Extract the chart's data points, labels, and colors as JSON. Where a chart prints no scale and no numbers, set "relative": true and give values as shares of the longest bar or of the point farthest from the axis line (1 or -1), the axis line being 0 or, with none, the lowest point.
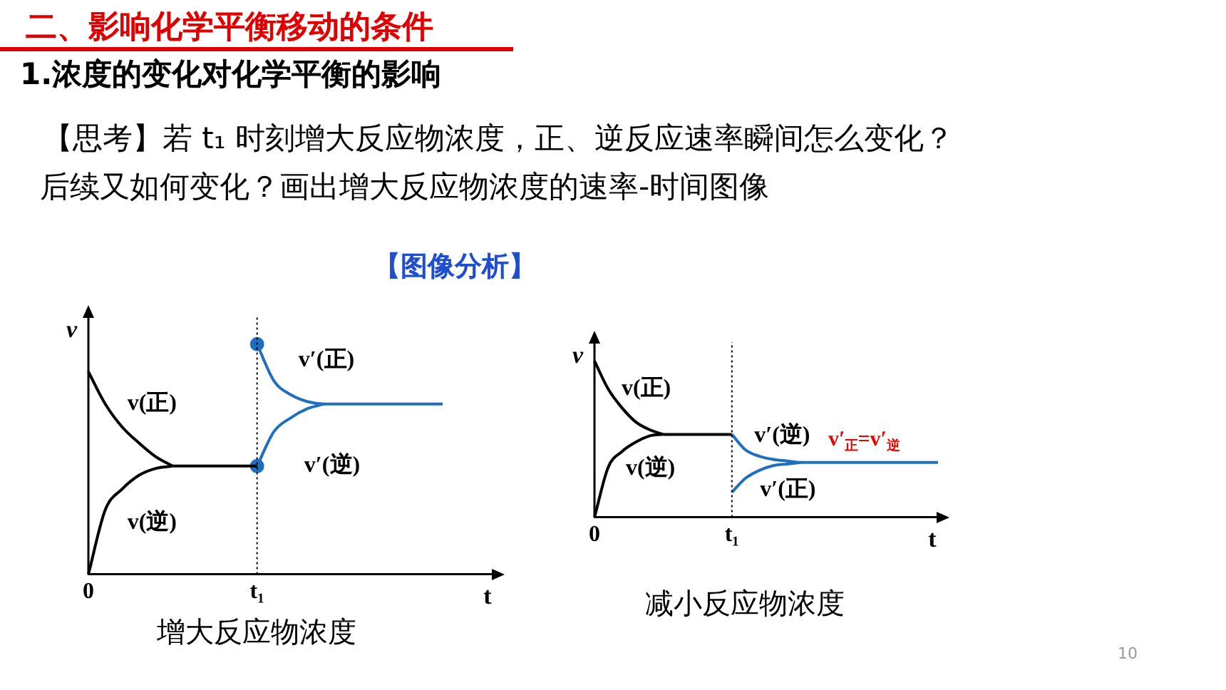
{
  "chart_data": [
    {
      "type": "other",
      "title": "二、影响化学平衡移动的条件",
      "subtitle": "1.浓度的变化对化学平衡的影响",
      "annotations": [
        "【思考】若 t₁ 时刻增大反应物浓度，正、逆反应速率瞬间怎么变化？",
        "后续又如何变化？画出增大反应物浓度的速率-时间图像",
        "【图像分析】",
        "10"
      ]
    },
    {
      "type": "line",
      "relative": true,
      "marker": "none",
      "xlabel": "t",
      "ylabel": "v",
      "categories": [
        "0",
        null,
        null,
        null,
        null,
        null,
        null,
        null,
        null,
        null,
        "t₁",
        null,
        null,
        null,
        null,
        null,
        null,
        null,
        null,
        null,
        null,
        null,
        null,
        null,
        null
      ],
      "series": [
        {
          "name": "v(正)",
          "color": "#000000",
          "values": [
            0.88,
            0.74,
            0.64,
            0.57,
            0.51,
            0.47,
            null,
            null,
            null,
            null,
            null,
            null,
            null,
            null,
            null,
            null,
            null,
            null,
            null,
            null,
            null,
            null,
            null,
            null,
            null
          ]
        },
        {
          "name": "v(逆)",
          "color": "#000000",
          "values": [
            0,
            0.28,
            0.37,
            0.43,
            0.46,
            0.47,
            null,
            null,
            null,
            null,
            null,
            null,
            null,
            null,
            null,
            null,
            null,
            null,
            null,
            null,
            null,
            null,
            null,
            null,
            null
          ]
        },
        {
          "color": "#000000",
          "values": [
            null,
            null,
            null,
            null,
            null,
            0.47,
            0.47,
            0.47,
            0.47,
            0.47,
            0.47,
            null,
            null,
            null,
            null,
            null,
            null,
            null,
            null,
            null,
            null,
            null,
            null,
            null,
            null
          ]
        },
        {
          "name": "v′(正)",
          "color": "#1f6fc0",
          "values": [
            null,
            null,
            null,
            null,
            null,
            null,
            null,
            null,
            null,
            null,
            1,
            0.84,
            0.78,
            0.75,
            0.74,
            0.74,
            0.74,
            0.74,
            0.74,
            0.74,
            0.74,
            0.74,
            null,
            null,
            null
          ]
        },
        {
          "name": "v′(逆)",
          "color": "#1f6fc0",
          "values": [
            null,
            null,
            null,
            null,
            null,
            null,
            null,
            null,
            null,
            null,
            0.47,
            0.62,
            0.68,
            0.72,
            0.74,
            null,
            null,
            null,
            null,
            null,
            null,
            null,
            null,
            null,
            null
          ]
        },
        {
          "type": "scatter",
          "marker": "circle",
          "color": "#1f6fc0",
          "x": [
            "t₁",
            "t₁"
          ],
          "values": [
            1,
            0.47
          ]
        }
      ],
      "ref_lines": [
        {
          "axis": "x",
          "value": "t₁",
          "color": "#000000",
          "line_style": "dotted"
        }
      ],
      "annotations": [
        "增大反应物浓度"
      ]
    },
    {
      "type": "line",
      "relative": true,
      "marker": "none",
      "xlabel": "t",
      "ylabel": "v",
      "categories": [
        "0",
        null,
        null,
        null,
        null,
        null,
        null,
        null,
        null,
        null,
        "t₁",
        null,
        null,
        null,
        null,
        null,
        null,
        null,
        null,
        null,
        null,
        null,
        null,
        null,
        null,
        null
      ],
      "series": [
        {
          "name": "v(正)",
          "color": "#000000",
          "values": [
            1,
            0.82,
            0.7,
            0.61,
            0.56,
            0.53,
            null,
            null,
            null,
            null,
            null,
            null,
            null,
            null,
            null,
            null,
            null,
            null,
            null,
            null,
            null,
            null,
            null,
            null,
            null,
            null
          ]
        },
        {
          "name": "v(逆)",
          "color": "#000000",
          "values": [
            0,
            0.32,
            0.42,
            0.48,
            0.52,
            0.53,
            null,
            null,
            null,
            null,
            null,
            null,
            null,
            null,
            null,
            null,
            null,
            null,
            null,
            null,
            null,
            null,
            null,
            null,
            null,
            null
          ]
        },
        {
          "color": "#000000",
          "values": [
            null,
            null,
            null,
            null,
            null,
            0.53,
            0.53,
            0.53,
            0.53,
            0.53,
            0.53,
            null,
            null,
            null,
            null,
            null,
            null,
            null,
            null,
            null,
            null,
            null,
            null,
            null,
            null,
            null
          ]
        },
        {
          "name": "v′(逆)",
          "color": "#1f6fc0",
          "values": [
            null,
            null,
            null,
            null,
            null,
            null,
            null,
            null,
            null,
            null,
            0.53,
            0.43,
            0.39,
            0.37,
            0.36,
            0.35,
            0.35,
            0.35,
            0.35,
            0.35,
            0.35,
            0.35,
            0.35,
            0.35,
            0.35,
            0.35
          ]
        },
        {
          "name": "v′(正)",
          "color": "#1f6fc0",
          "values": [
            null,
            null,
            null,
            null,
            null,
            null,
            null,
            null,
            null,
            null,
            0.16,
            0.25,
            0.3,
            0.33,
            0.34,
            0.35,
            null,
            null,
            null,
            null,
            null,
            null,
            null,
            null,
            null,
            null
          ]
        }
      ],
      "ref_lines": [
        {
          "axis": "x",
          "value": "t₁",
          "color": "#000000",
          "line_style": "dotted"
        }
      ],
      "annotations": [
        "v′$_{正}$=v′$_{逆}$",
        "减小反应物浓度"
      ]
    }
  ]
}
